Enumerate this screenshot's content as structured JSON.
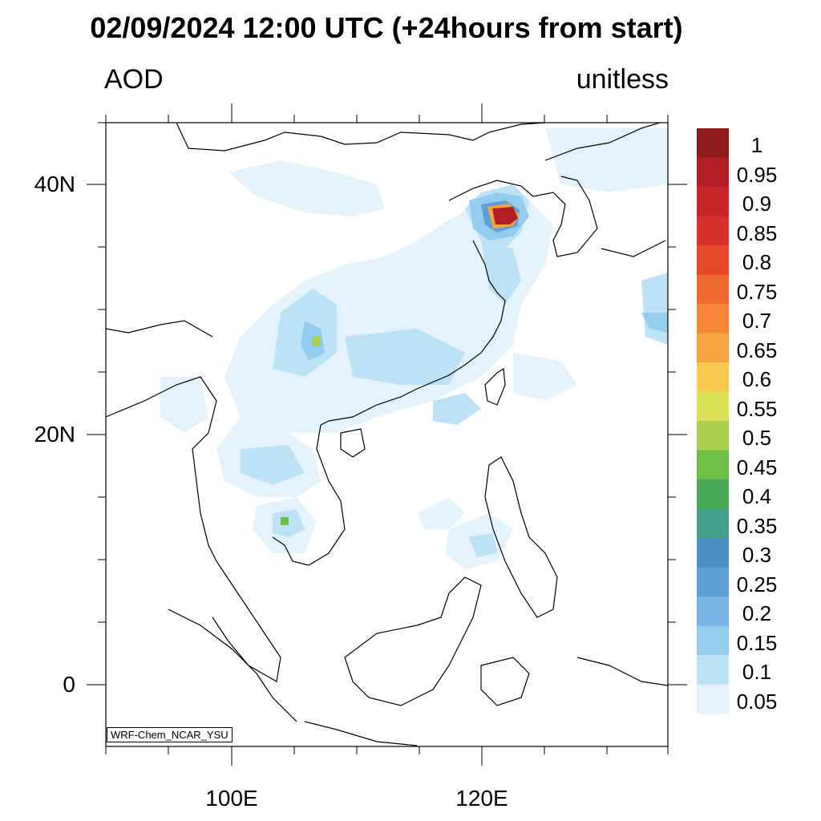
{
  "title": "02/09/2024 12:00 UTC (+24hours from start)",
  "variable_label": "AOD",
  "units_label": "unitless",
  "credit": "WRF-Chem_NCAR_YSU",
  "lat_labels": [
    "40N",
    "20N",
    "0"
  ],
  "lon_labels": [
    "100E",
    "120E"
  ],
  "colorbar": {
    "labels": [
      "1",
      "0.95",
      "0.9",
      "0.85",
      "0.8",
      "0.75",
      "0.7",
      "0.65",
      "0.6",
      "0.55",
      "0.5",
      "0.45",
      "0.4",
      "0.35",
      "0.3",
      "0.25",
      "0.2",
      "0.15",
      "0.1",
      "0.05"
    ],
    "colors": [
      "#8e1a1b",
      "#b21f24",
      "#c7252a",
      "#d8302b",
      "#e4472a",
      "#ef6a2e",
      "#f58737",
      "#f6a443",
      "#f8c94f",
      "#dbe058",
      "#a9d04f",
      "#6dbf45",
      "#4aa958",
      "#43a089",
      "#4891c0",
      "#5b9fd6",
      "#78b4e4",
      "#94ccef",
      "#bde2f6",
      "#e3f2fb"
    ]
  }
}
